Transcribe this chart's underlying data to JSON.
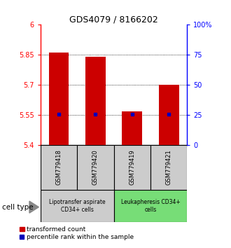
{
  "title": "GDS4079 / 8166202",
  "samples": [
    "GSM779418",
    "GSM779420",
    "GSM779419",
    "GSM779421"
  ],
  "bar_values": [
    5.862,
    5.842,
    5.568,
    5.7
  ],
  "marker_values": [
    5.555,
    5.554,
    5.553,
    5.554
  ],
  "bar_color": "#cc0000",
  "marker_color": "#0000bb",
  "ylim_left": [
    5.4,
    6.0
  ],
  "ylim_right": [
    0,
    100
  ],
  "yticks_left": [
    5.4,
    5.55,
    5.7,
    5.85,
    6.0
  ],
  "ytick_labels_left": [
    "5.4",
    "5.55",
    "5.7",
    "5.85",
    "6"
  ],
  "yticks_right": [
    0,
    25,
    50,
    75,
    100
  ],
  "ytick_labels_right": [
    "0",
    "25",
    "50",
    "75",
    "100%"
  ],
  "grid_ticks": [
    5.55,
    5.7,
    5.85
  ],
  "groups": [
    {
      "label": "Lipotransfer aspirate\nCD34+ cells",
      "samples": [
        0,
        1
      ],
      "color": "#cccccc"
    },
    {
      "label": "Leukapheresis CD34+\ncells",
      "samples": [
        2,
        3
      ],
      "color": "#77dd77"
    }
  ],
  "cell_type_label": "cell type",
  "legend_bar_label": "transformed count",
  "legend_marker_label": "percentile rank within the sample",
  "background_color": "#ffffff",
  "plot_bg_color": "#ffffff",
  "sample_box_color": "#cccccc",
  "y_tick_fontsize": 7,
  "title_fontsize": 9,
  "bar_width": 0.55
}
